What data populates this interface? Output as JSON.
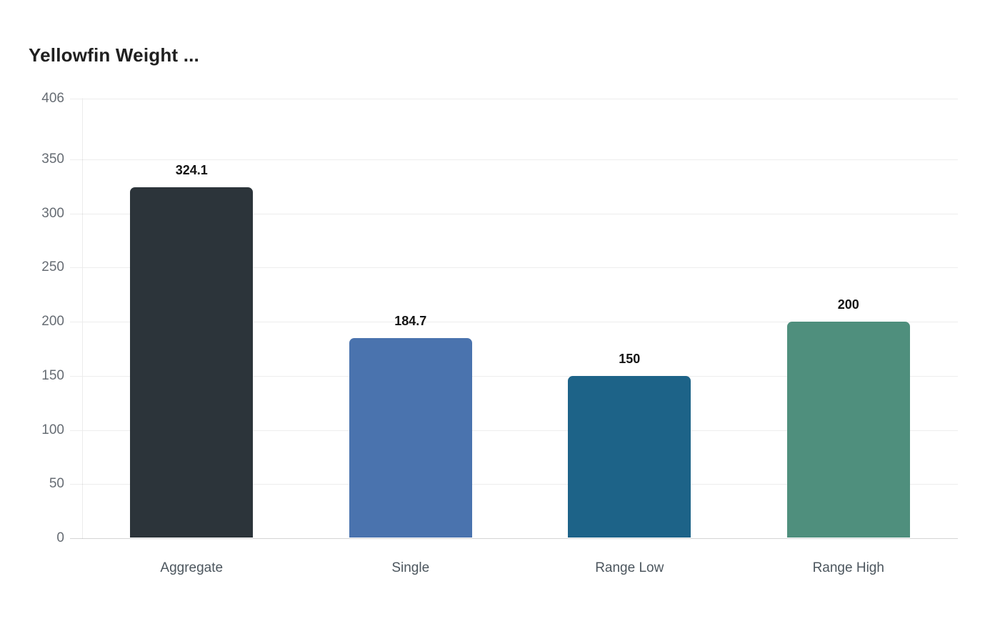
{
  "chart_data": {
    "type": "bar",
    "title": "Yellowfin Weight ...",
    "categories": [
      "Aggregate",
      "Single",
      "Range Low",
      "Range High"
    ],
    "values": [
      324.1,
      184.7,
      150,
      200
    ],
    "value_labels": [
      "324.1",
      "184.7",
      "150",
      "200"
    ],
    "bar_colors": [
      "#2c343a",
      "#4a73ae",
      "#1d6388",
      "#4f8f7d"
    ],
    "y_ticks": [
      0,
      50,
      100,
      150,
      200,
      250,
      300,
      350,
      406
    ],
    "ylim": [
      0,
      406
    ],
    "xlabel": "",
    "ylabel": "",
    "grid": "horizontal",
    "legend": "none",
    "colors": {
      "background": "#ffffff",
      "grid_color": "#ededed",
      "baseline_color": "#d4d4d4",
      "axis_dotted_color": "#d8d8d8",
      "tick_label_color": "#666c73",
      "category_label_color": "#4c565e",
      "value_label_color": "#141414",
      "title_color": "#202020"
    }
  }
}
